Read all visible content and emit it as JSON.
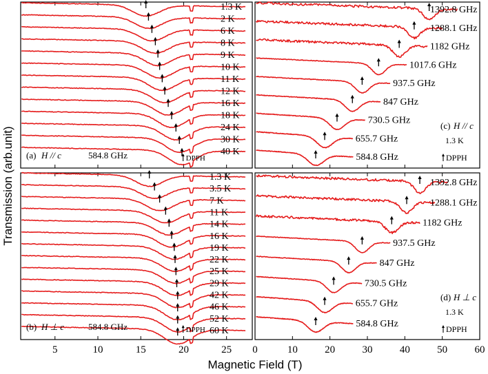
{
  "figure": {
    "ylabel": "Transmission (arb.unit)",
    "xlabel": "Magnetic Field (T)"
  },
  "chart_data": [
    {
      "type": "line",
      "panel": "a",
      "title": "(a)",
      "orientation": "H // c",
      "frequency": "584.8 GHz",
      "marker_text": "DPPH",
      "xlim": [
        1,
        28
      ],
      "xticks": [
        5,
        10,
        15,
        20,
        25
      ],
      "series": [
        {
          "name": "1.3 K",
          "res": 15.6
        },
        {
          "name": "2 K",
          "res": 15.9
        },
        {
          "name": "6 K",
          "res": 16.3
        },
        {
          "name": "8 K",
          "res": 16.7
        },
        {
          "name": "9 K",
          "res": 17.0
        },
        {
          "name": "10 K",
          "res": 17.2
        },
        {
          "name": "11 K",
          "res": 17.5
        },
        {
          "name": "12 K",
          "res": 17.8
        },
        {
          "name": "16 K",
          "res": 18.2
        },
        {
          "name": "18 K",
          "res": 18.6
        },
        {
          "name": "24 K",
          "res": 19.1
        },
        {
          "name": "30 K",
          "res": 19.5
        },
        {
          "name": "40 K",
          "res": 19.8
        }
      ],
      "dpph_field": 20.9
    },
    {
      "type": "line",
      "panel": "b",
      "title": "(b)",
      "orientation": "H ⊥ c",
      "frequency": "584.8 GHz",
      "marker_text": "DPPH",
      "xlim": [
        1,
        28
      ],
      "xticks": [
        5,
        10,
        15,
        20,
        25
      ],
      "series": [
        {
          "name": "1.3 K",
          "res": 16.0
        },
        {
          "name": "3.5 K",
          "res": 16.6
        },
        {
          "name": "7 K",
          "res": 17.2
        },
        {
          "name": "11 K",
          "res": 17.9
        },
        {
          "name": "14 K",
          "res": 18.3
        },
        {
          "name": "16 K",
          "res": 18.6
        },
        {
          "name": "19 K",
          "res": 18.9
        },
        {
          "name": "22 K",
          "res": 19.0
        },
        {
          "name": "25 K",
          "res": 19.1
        },
        {
          "name": "29 K",
          "res": 19.2
        },
        {
          "name": "42 K",
          "res": 19.3
        },
        {
          "name": "46 K",
          "res": 19.3
        },
        {
          "name": "52 K",
          "res": 19.3
        },
        {
          "name": "60 K",
          "res": 19.3
        }
      ],
      "dpph_field": 20.9
    },
    {
      "type": "line",
      "panel": "c",
      "title": "(c)",
      "orientation": "H // c",
      "temperature": "1.3 K",
      "marker_text": "DPPH",
      "xlim": [
        0,
        60
      ],
      "xticks": [
        0,
        10,
        20,
        30,
        40,
        50
      ],
      "series": [
        {
          "name": "1392.8 GHz",
          "res": 46.5
        },
        {
          "name": "1288.1 GHz",
          "res": 42.5
        },
        {
          "name": "1182 GHz",
          "res": 38.5
        },
        {
          "name": "1017.6 GHz",
          "res": 33.0
        },
        {
          "name": "937.5 GHz",
          "res": 28.6
        },
        {
          "name": "847 GHz",
          "res": 26.0
        },
        {
          "name": "730.5 GHz",
          "res": 21.9
        },
        {
          "name": "655.7 GHz",
          "res": 18.6
        },
        {
          "name": "584.8 GHz",
          "res": 16.2
        }
      ]
    },
    {
      "type": "line",
      "panel": "d",
      "title": "(d)",
      "orientation": "H ⊥ c",
      "temperature": "1.3 K",
      "marker_text": "DPPH",
      "xlim": [
        0,
        60
      ],
      "xticks": [
        0,
        10,
        20,
        30,
        40,
        50,
        60
      ],
      "series": [
        {
          "name": "1392.8 GHz",
          "res": 44.0
        },
        {
          "name": "1288.1 GHz",
          "res": 40.5
        },
        {
          "name": "1182 GHz",
          "res": 36.5
        },
        {
          "name": "937.5 GHz",
          "res": 28.6
        },
        {
          "name": "847 GHz",
          "res": 25.0
        },
        {
          "name": "730.5 GHz",
          "res": 21.0
        },
        {
          "name": "655.7 GHz",
          "res": 18.6
        },
        {
          "name": "584.8 GHz",
          "res": 16.2
        }
      ]
    }
  ]
}
